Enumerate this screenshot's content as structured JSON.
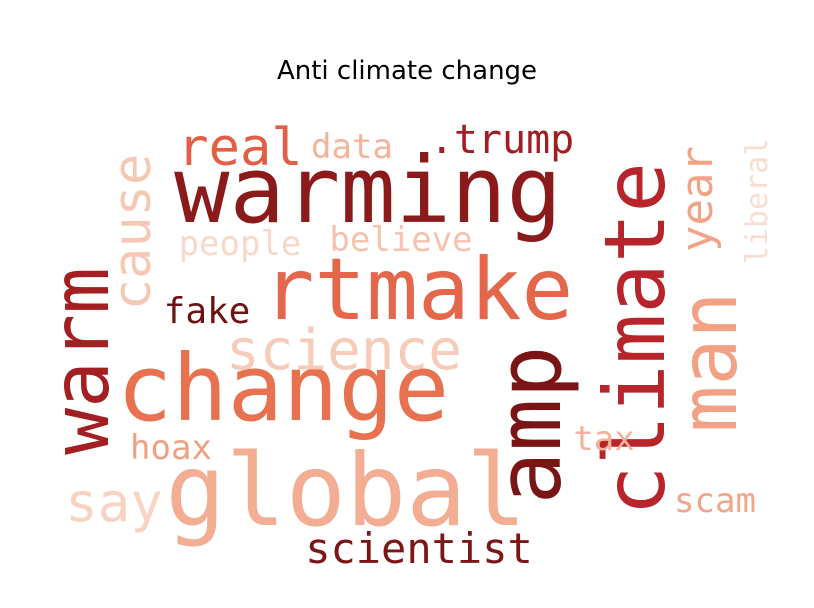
{
  "title": "Anti climate change",
  "words": [
    {
      "text": "warming",
      "color": "#8b1a1a"
    },
    {
      "text": "rtmake",
      "color": "#e4664b"
    },
    {
      "text": "change",
      "color": "#e8714f"
    },
    {
      "text": "global",
      "color": "#f2ad93"
    },
    {
      "text": "climate",
      "color": "#b7252a"
    },
    {
      "text": "amp",
      "color": "#7a1515"
    },
    {
      "text": "man",
      "color": "#f2a184"
    },
    {
      "text": "warm",
      "color": "#a31f22"
    },
    {
      "text": "science",
      "color": "#f6cbb8"
    },
    {
      "text": "cause",
      "color": "#f6c8b4"
    },
    {
      "text": "real",
      "color": "#e25f45"
    },
    {
      "text": ".trump",
      "color": "#a01e21"
    },
    {
      "text": "data",
      "color": "#f3b49b"
    },
    {
      "text": "year",
      "color": "#f0a387"
    },
    {
      "text": "liberal",
      "color": "#f9ddd0"
    },
    {
      "text": "people",
      "color": "#f8d8ca"
    },
    {
      "text": "believe",
      "color": "#f5c3ad"
    },
    {
      "text": "fake",
      "color": "#6e1111"
    },
    {
      "text": "say",
      "color": "#f8d2c2"
    },
    {
      "text": "hoax",
      "color": "#f0a184"
    },
    {
      "text": "tax",
      "color": "#f3b199"
    },
    {
      "text": "scam",
      "color": "#f1a68a"
    },
    {
      "text": "scientist",
      "color": "#7c1616"
    }
  ]
}
